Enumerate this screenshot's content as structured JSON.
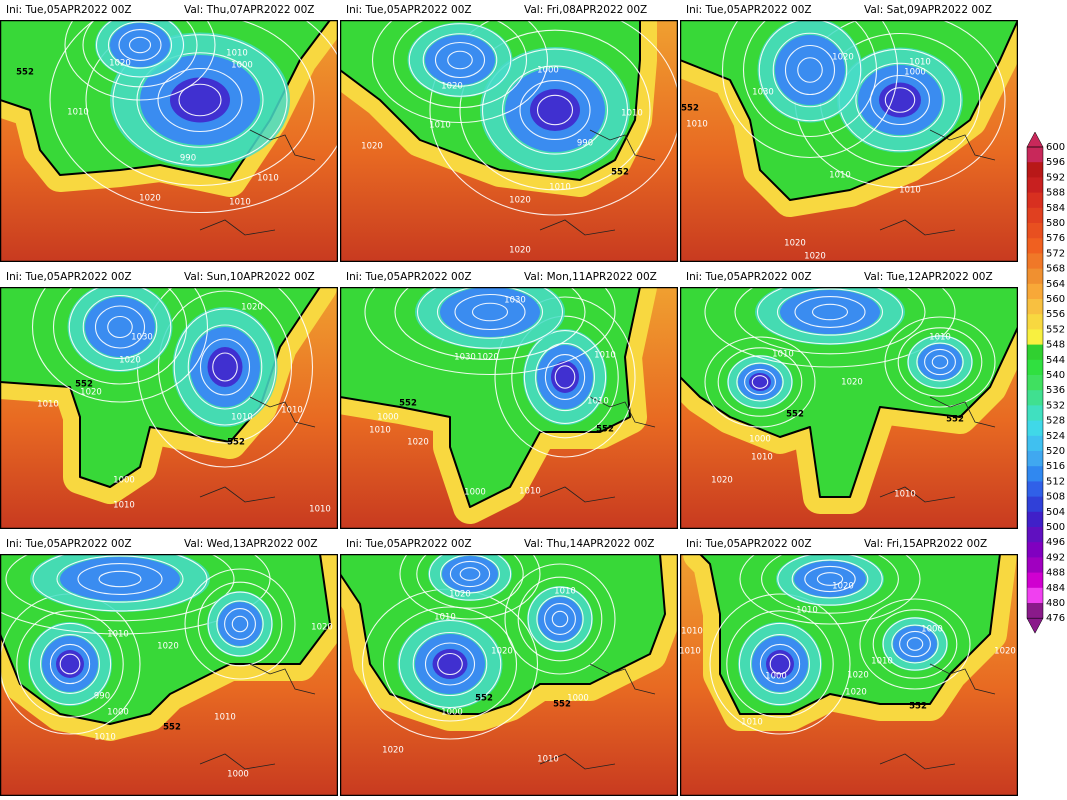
{
  "panels": [
    {
      "ini": "Ini: Tue,05APR2022 00Z",
      "valid": "Val: Thu,07APR2022 00Z",
      "contour_labels": [
        "1010",
        "1000",
        "1020",
        "552",
        "1010",
        "990",
        "1010",
        "1020",
        "1010"
      ]
    },
    {
      "ini": "Ini: Tue,05APR2022 00Z",
      "valid": "Val: Fri,08APR2022 00Z",
      "contour_labels": [
        "1000",
        "1020",
        "1010",
        "990",
        "1020",
        "1010",
        "552",
        "1010",
        "1020",
        "1020"
      ]
    },
    {
      "ini": "Ini: Tue,05APR2022 00Z",
      "valid": "Val: Sat,09APR2022 00Z",
      "contour_labels": [
        "1020",
        "1010",
        "1000",
        "552",
        "1010",
        "1030",
        "1010",
        "1010",
        "1020",
        "1020"
      ]
    },
    {
      "ini": "Ini: Tue,05APR2022 00Z",
      "valid": "Val: Sun,10APR2022 00Z",
      "contour_labels": [
        "1020",
        "1030",
        "1020",
        "552",
        "1020",
        "1010",
        "1010",
        "552",
        "1010",
        "1000",
        "1010",
        "1010"
      ]
    },
    {
      "ini": "Ini: Tue,05APR2022 00Z",
      "valid": "Val: Mon,11APR2022 00Z",
      "contour_labels": [
        "1030",
        "1030",
        "1020",
        "1010",
        "552",
        "1000",
        "1010",
        "1010",
        "552",
        "1020",
        "1000",
        "1010"
      ]
    },
    {
      "ini": "Ini: Tue,05APR2022 00Z",
      "valid": "Val: Tue,12APR2022 00Z",
      "contour_labels": [
        "1010",
        "1010",
        "1020",
        "552",
        "552",
        "1000",
        "1010",
        "1020",
        "1010"
      ]
    },
    {
      "ini": "Ini: Tue,05APR2022 00Z",
      "valid": "Val: Wed,13APR2022 00Z",
      "contour_labels": [
        "1010",
        "1020",
        "990",
        "1000",
        "552",
        "1010",
        "1010",
        "1000",
        "1020"
      ]
    },
    {
      "ini": "Ini: Tue,05APR2022 00Z",
      "valid": "Val: Thu,14APR2022 00Z",
      "contour_labels": [
        "1020",
        "1010",
        "1010",
        "1020",
        "552",
        "1000",
        "552",
        "1000",
        "1010",
        "1020"
      ]
    },
    {
      "ini": "Ini: Tue,05APR2022 00Z",
      "valid": "Val: Fri,15APR2022 00Z",
      "contour_labels": [
        "1020",
        "1010",
        "1000",
        "1010",
        "1010",
        "1010",
        "1020",
        "1000",
        "1020",
        "552",
        "1010",
        "1020"
      ]
    }
  ],
  "colorbar": {
    "levels": [
      600,
      596,
      592,
      588,
      584,
      580,
      576,
      572,
      568,
      564,
      560,
      556,
      552,
      548,
      544,
      540,
      536,
      532,
      528,
      524,
      520,
      516,
      512,
      508,
      504,
      500,
      496,
      492,
      488,
      484,
      480,
      476
    ],
    "colors": [
      "#c8285a",
      "#b81818",
      "#c82020",
      "#d83020",
      "#e04020",
      "#e85020",
      "#f06020",
      "#f07828",
      "#f09030",
      "#f8a838",
      "#f8c040",
      "#f8d840",
      "#f8f040",
      "#30d030",
      "#30e040",
      "#40e060",
      "#40e090",
      "#40e0c0",
      "#40d8e8",
      "#40c0f0",
      "#40a8f0",
      "#3088f0",
      "#3060e8",
      "#3040d8",
      "#4020c8",
      "#6010c0",
      "#8000c0",
      "#a000c0",
      "#d000d0",
      "#f040f0",
      "#8a1a8a"
    ]
  }
}
